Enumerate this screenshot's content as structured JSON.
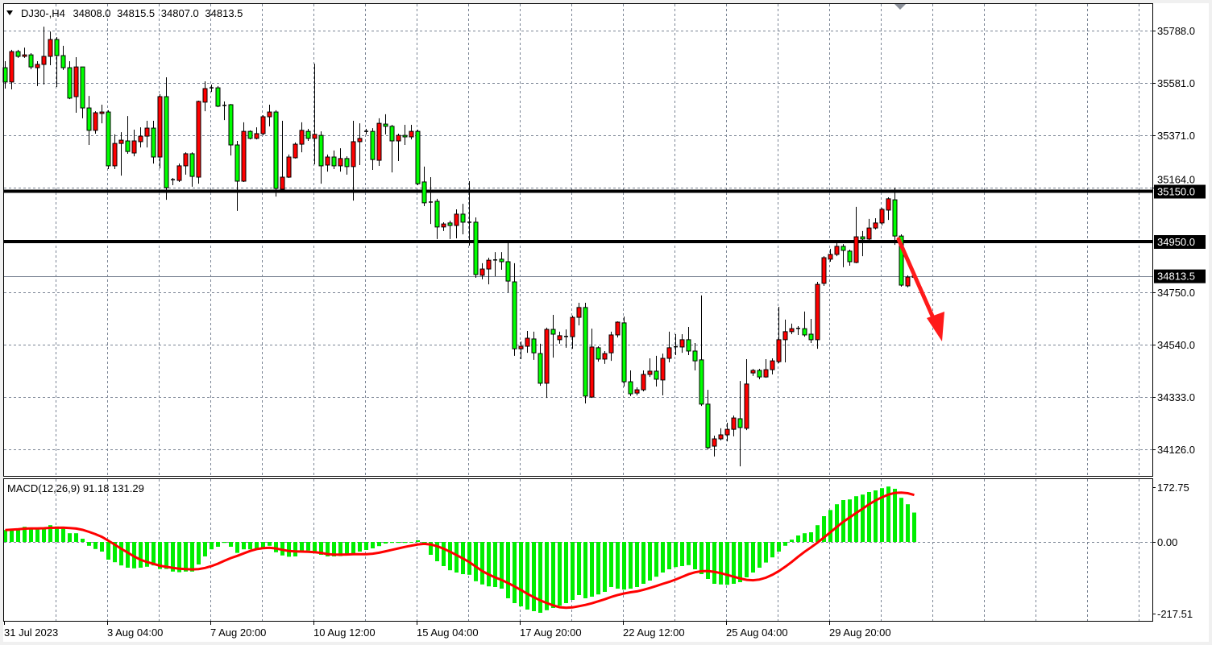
{
  "header": {
    "symbol": "DJ30-,H4",
    "open": "34808.0",
    "high": "34815.5",
    "low": "34807.0",
    "close": "34813.5"
  },
  "colors": {
    "bull": "#ff0000",
    "bear": "#00ff00",
    "outline": "#000000",
    "grid": "#7a8494",
    "macd_hist": "#00ee00",
    "macd_signal": "#ff0000",
    "annotation_arrow": "#ff1a1a",
    "background": "#ffffff"
  },
  "chart_data": {
    "type": "candlestick",
    "title": "DJ30-,H4",
    "timeframe": "H4",
    "grid": true,
    "bull_color": "red",
    "bear_color": "green",
    "x_labels": [
      "31 Jul 2023",
      "3 Aug 04:00",
      "7 Aug 20:00",
      "10 Aug 12:00",
      "15 Aug 04:00",
      "17 Aug 20:00",
      "22 Aug 12:00",
      "25 Aug 04:00",
      "29 Aug 20:00"
    ],
    "x_label_bar_interval": 16,
    "y_ticks": [
      "35788.0",
      "35581.0",
      "35371.0",
      "35164.0",
      "34750.0",
      "34540.0",
      "34333.0",
      "34126.0"
    ],
    "ylim": [
      34050,
      35850
    ],
    "horizontal_lines": [
      {
        "value": 35150.0,
        "label": "35150.0"
      },
      {
        "value": 34950.0,
        "label": "34950.0"
      }
    ],
    "current_price": {
      "value": 34813.5,
      "label": "34813.5"
    },
    "annotation": "down-arrow",
    "ohlc": [
      [
        35641,
        35667,
        35558,
        35584
      ],
      [
        35584,
        35712,
        35555,
        35705
      ],
      [
        35705,
        35712,
        35680,
        35686
      ],
      [
        35686,
        35721,
        35680,
        35692
      ],
      [
        35692,
        35699,
        35635,
        35644
      ],
      [
        35641,
        35667,
        35568,
        35654
      ],
      [
        35654,
        35804,
        35574,
        35686
      ],
      [
        35686,
        35785,
        35651,
        35753
      ],
      [
        35753,
        35763,
        35564,
        35689
      ],
      [
        35689,
        35728,
        35632,
        35641
      ],
      [
        35641,
        35667,
        35516,
        35520
      ],
      [
        35526,
        35683,
        35462,
        35644
      ],
      [
        35644,
        35644,
        35440,
        35481
      ],
      [
        35481,
        35529,
        35334,
        35392
      ],
      [
        35392,
        35468,
        35379,
        35462
      ],
      [
        35459,
        35494,
        35420,
        35465
      ],
      [
        35465,
        35472,
        35238,
        35251
      ],
      [
        35251,
        35376,
        35238,
        35340
      ],
      [
        35340,
        35385,
        35212,
        35353
      ],
      [
        35350,
        35449,
        35299,
        35308
      ],
      [
        35302,
        35395,
        35289,
        35350
      ],
      [
        35347,
        35404,
        35324,
        35369
      ],
      [
        35369,
        35430,
        35324,
        35401
      ],
      [
        35401,
        35430,
        35260,
        35286
      ],
      [
        35286,
        35536,
        35241,
        35526
      ],
      [
        35526,
        35603,
        35116,
        35164
      ],
      [
        35196,
        35203,
        35174,
        35193
      ],
      [
        35193,
        35260,
        35187,
        35251
      ],
      [
        35251,
        35305,
        35216,
        35299
      ],
      [
        35299,
        35305,
        35168,
        35209
      ],
      [
        35206,
        35510,
        35180,
        35507
      ],
      [
        35504,
        35587,
        35468,
        35558
      ],
      [
        35558,
        35574,
        35545,
        35561
      ],
      [
        35561,
        35568,
        35484,
        35488
      ],
      [
        35491,
        35507,
        35433,
        35488
      ],
      [
        35494,
        35497,
        35292,
        35334
      ],
      [
        35334,
        35350,
        35072,
        35190
      ],
      [
        35190,
        35424,
        35187,
        35388
      ],
      [
        35388,
        35392,
        35356,
        35360
      ],
      [
        35360,
        35404,
        35356,
        35379
      ],
      [
        35379,
        35452,
        35372,
        35446
      ],
      [
        35446,
        35494,
        35408,
        35465
      ],
      [
        35465,
        35472,
        35129,
        35161
      ],
      [
        35158,
        35430,
        35155,
        35206
      ],
      [
        35206,
        35296,
        35203,
        35286
      ],
      [
        35283,
        35344,
        35280,
        35337
      ],
      [
        35337,
        35424,
        35305,
        35392
      ],
      [
        35388,
        35398,
        35350,
        35360
      ],
      [
        35360,
        35657,
        35257,
        35376
      ],
      [
        35372,
        35388,
        35180,
        35251
      ],
      [
        35254,
        35296,
        35228,
        35286
      ],
      [
        35286,
        35312,
        35238,
        35251
      ],
      [
        35251,
        35321,
        35228,
        35280
      ],
      [
        35280,
        35289,
        35216,
        35248
      ],
      [
        35248,
        35430,
        35113,
        35347
      ],
      [
        35347,
        35420,
        35254,
        35360
      ],
      [
        35385,
        35398,
        35376,
        35388
      ],
      [
        35388,
        35401,
        35235,
        35276
      ],
      [
        35273,
        35440,
        35251,
        35420
      ],
      [
        35417,
        35456,
        35376,
        35408
      ],
      [
        35408,
        35414,
        35225,
        35350
      ],
      [
        35350,
        35379,
        35270,
        35372
      ],
      [
        35372,
        35414,
        35334,
        35366
      ],
      [
        35366,
        35414,
        35356,
        35388
      ],
      [
        35388,
        35395,
        35174,
        35180
      ],
      [
        35187,
        35248,
        35091,
        35104
      ],
      [
        35107,
        35206,
        35020,
        35106
      ],
      [
        35110,
        35120,
        34960,
        35008
      ],
      [
        35008,
        35027,
        34992,
        35020
      ],
      [
        35024,
        35033,
        34960,
        35014
      ],
      [
        35014,
        35078,
        34963,
        35059
      ],
      [
        35059,
        35100,
        34979,
        35027
      ],
      [
        35027,
        35190,
        34934,
        35026
      ],
      [
        35027,
        35046,
        34806,
        34819
      ],
      [
        34816,
        34864,
        34800,
        34841
      ],
      [
        34841,
        34886,
        34780,
        34876
      ],
      [
        34876,
        34908,
        34812,
        34877
      ],
      [
        34880,
        34908,
        34838,
        34870
      ],
      [
        34870,
        34950,
        34748,
        34793
      ],
      [
        34790,
        34864,
        34496,
        34524
      ],
      [
        34524,
        34553,
        34483,
        34534
      ],
      [
        34534,
        34595,
        34508,
        34566
      ],
      [
        34563,
        34592,
        34480,
        34508
      ],
      [
        34505,
        34544,
        34377,
        34387
      ],
      [
        34387,
        34608,
        34329,
        34601
      ],
      [
        34601,
        34659,
        34489,
        34582
      ],
      [
        34560,
        34592,
        34544,
        34576
      ],
      [
        34572,
        34601,
        34528,
        34573
      ],
      [
        34572,
        34656,
        34524,
        34649
      ],
      [
        34649,
        34707,
        34617,
        34688
      ],
      [
        34688,
        34707,
        34307,
        34336
      ],
      [
        34332,
        34604,
        34329,
        34531
      ],
      [
        34528,
        34534,
        34473,
        34483
      ],
      [
        34483,
        34515,
        34464,
        34505
      ],
      [
        34508,
        34592,
        34476,
        34579
      ],
      [
        34579,
        34633,
        34569,
        34630
      ],
      [
        34627,
        34652,
        34374,
        34393
      ],
      [
        34393,
        34438,
        34336,
        34345
      ],
      [
        34348,
        34371,
        34339,
        34361
      ],
      [
        34361,
        34438,
        34355,
        34422
      ],
      [
        34422,
        34486,
        34412,
        34435
      ],
      [
        34435,
        34496,
        34374,
        34403
      ],
      [
        34400,
        34505,
        34339,
        34486
      ],
      [
        34486,
        34592,
        34470,
        34528
      ],
      [
        34531,
        34582,
        34499,
        34532
      ],
      [
        34531,
        34582,
        34508,
        34560
      ],
      [
        34560,
        34611,
        34499,
        34515
      ],
      [
        34515,
        34547,
        34438,
        34476
      ],
      [
        34480,
        34736,
        34297,
        34304
      ],
      [
        34304,
        34361,
        34124,
        34131
      ],
      [
        34137,
        34179,
        34096,
        34166
      ],
      [
        34166,
        34208,
        34160,
        34182
      ],
      [
        34182,
        34230,
        34156,
        34204
      ],
      [
        34204,
        34259,
        34176,
        34249
      ],
      [
        34246,
        34396,
        34057,
        34211
      ],
      [
        34208,
        34483,
        34201,
        34384
      ],
      [
        34428,
        34444,
        34416,
        34438
      ],
      [
        34438,
        34444,
        34403,
        34412
      ],
      [
        34412,
        34483,
        34409,
        34441
      ],
      [
        34441,
        34486,
        34422,
        34476
      ],
      [
        34473,
        34691,
        34467,
        34560
      ],
      [
        34560,
        34640,
        34470,
        34592
      ],
      [
        34592,
        34624,
        34582,
        34604
      ],
      [
        34604,
        34614,
        34579,
        34605
      ],
      [
        34604,
        34672,
        34572,
        34579
      ],
      [
        34582,
        34643,
        34547,
        34560
      ],
      [
        34560,
        34790,
        34524,
        34780
      ],
      [
        34784,
        34892,
        34774,
        34886
      ],
      [
        34880,
        34921,
        34870,
        34899
      ],
      [
        34899,
        34944,
        34892,
        34931
      ],
      [
        34931,
        34940,
        34848,
        34915
      ],
      [
        34912,
        34918,
        34854,
        34870
      ],
      [
        34867,
        35088,
        34864,
        34969
      ],
      [
        34969,
        34992,
        34892,
        34960
      ],
      [
        34960,
        35040,
        34956,
        35004
      ],
      [
        35004,
        35043,
        34998,
        35024
      ],
      [
        35024,
        35084,
        35014,
        35078
      ],
      [
        35075,
        35126,
        35036,
        35120
      ],
      [
        35116,
        35164,
        34937,
        34972
      ],
      [
        34972,
        34979,
        34771,
        34777
      ],
      [
        34774,
        34816,
        34768,
        34809
      ],
      [
        34808,
        34815.5,
        34807,
        34813.5
      ]
    ],
    "indicator": {
      "label": "MACD(12,26,9) 91.18 131.29",
      "name": "MACD",
      "params": [
        12,
        26,
        9
      ],
      "main_last": 91.18,
      "signal_last": 131.29,
      "y_ticks": [
        "172.75",
        "0.00",
        "-217.51"
      ],
      "ylim": [
        -217.51,
        172.75
      ],
      "main": [
        37,
        39,
        42,
        47,
        44,
        43,
        45,
        52,
        48,
        41,
        27,
        27,
        10,
        -12,
        -22,
        -30,
        -55,
        -63,
        -73,
        -80,
        -82,
        -80,
        -77,
        -73,
        -84,
        -84,
        -92,
        -94,
        -92,
        -92,
        -70,
        -45,
        -23,
        -15,
        -3,
        -15,
        -34,
        -23,
        -23,
        -20,
        -20,
        -12,
        -32,
        -42,
        -46,
        -45,
        -30,
        -27,
        -33,
        -40,
        -45,
        -45,
        -44,
        -42,
        -38,
        -30,
        -25,
        -20,
        -13,
        -5,
        -3,
        -3,
        -3,
        -2,
        5,
        -9,
        -40,
        -60,
        -75,
        -88,
        -95,
        -100,
        -102,
        -122,
        -132,
        -138,
        -140,
        -145,
        -175,
        -190,
        -200,
        -210,
        -215,
        -220,
        -212,
        -205,
        -198,
        -190,
        -180,
        -165,
        -175,
        -170,
        -163,
        -155,
        -140,
        -145,
        -148,
        -145,
        -140,
        -130,
        -120,
        -108,
        -95,
        -85,
        -78,
        -75,
        -72,
        -85,
        -100,
        -115,
        -130,
        -132,
        -133,
        -130,
        -125,
        -110,
        -95,
        -80,
        -64,
        -48,
        -30,
        -12,
        7,
        20,
        27,
        30,
        52,
        80,
        99,
        117,
        130,
        132,
        142,
        147,
        155,
        160,
        167,
        172,
        165,
        137,
        117,
        91.18
      ]
    }
  }
}
